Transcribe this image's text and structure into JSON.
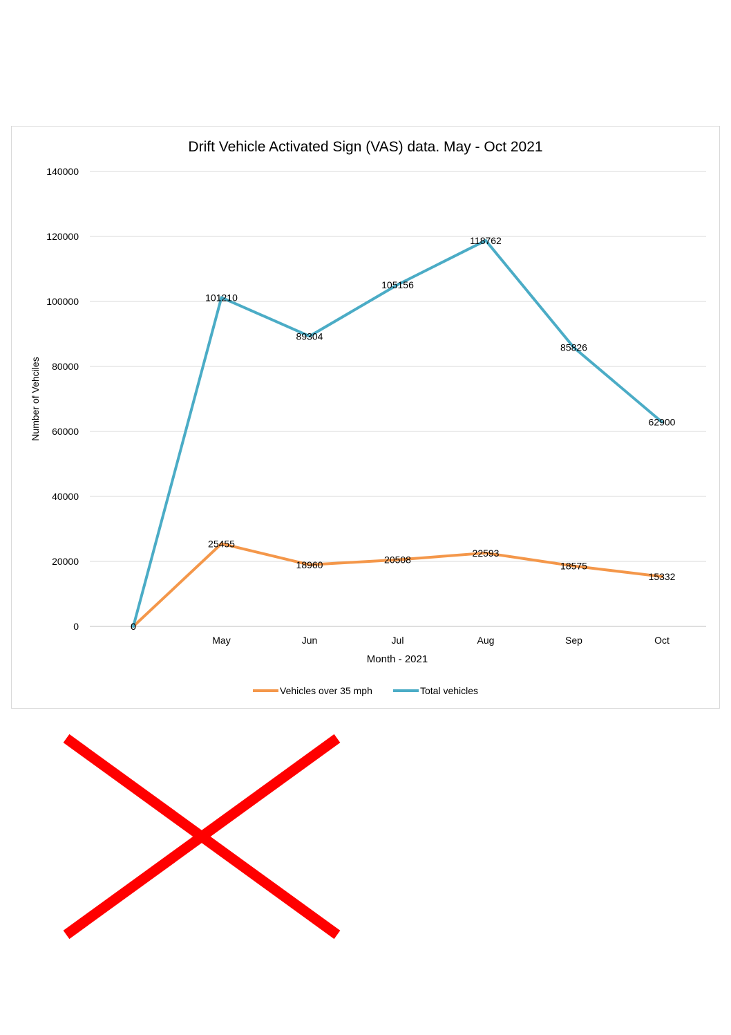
{
  "chart_data": {
    "type": "line",
    "title": "Drift Vehicle Activated Sign (VAS) data. May - Oct 2021",
    "xlabel": "Month - 2021",
    "ylabel": "Number of Vehciles",
    "categories": [
      "",
      "May",
      "Jun",
      "Jul",
      "Aug",
      "Sep",
      "Oct"
    ],
    "ylim": [
      0,
      140000
    ],
    "yticks": [
      0,
      20000,
      40000,
      60000,
      80000,
      100000,
      120000,
      140000
    ],
    "grid": true,
    "legend_position": "bottom",
    "series": [
      {
        "name": "Vehicles over 35 mph",
        "color": "#f4974a",
        "values": [
          0,
          25455,
          18960,
          20508,
          22593,
          18575,
          15332
        ]
      },
      {
        "name": "Total vehicles",
        "color": "#4bacc6",
        "values": [
          0,
          101210,
          89304,
          105156,
          118762,
          85826,
          62900
        ]
      }
    ]
  },
  "decoration": {
    "cross_color": "#ff0000",
    "cross_icon": "red-x-icon"
  }
}
